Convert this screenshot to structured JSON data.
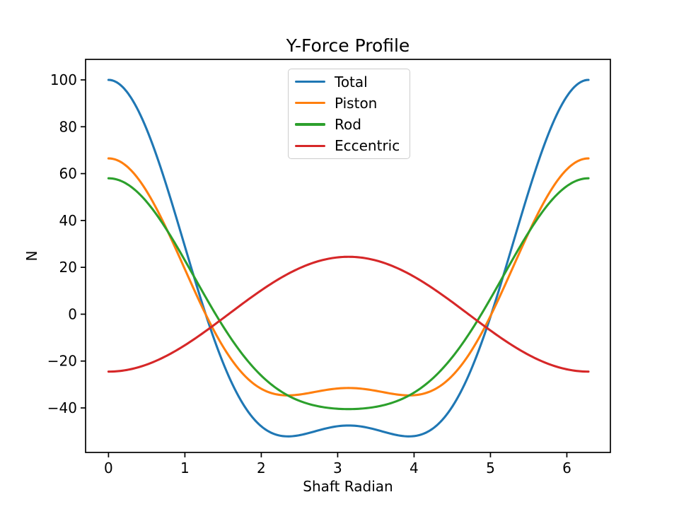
{
  "figure": {
    "background": "#ffffff"
  },
  "chart_data": {
    "type": "line",
    "title": "Y-Force Profile",
    "xlabel": "Shaft Radian",
    "ylabel": "N",
    "xlim": [
      -0.3,
      6.57
    ],
    "ylim": [
      -59.0,
      108.75
    ],
    "x_ticks": [
      0,
      1,
      2,
      3,
      4,
      5,
      6
    ],
    "y_ticks": [
      -40,
      -20,
      0,
      20,
      40,
      60,
      80,
      100
    ],
    "grid": false,
    "axis_color": "#000000",
    "text_color": "#000000",
    "legend": {
      "position": "upper center inside",
      "entries": [
        "Total",
        "Piston",
        "Rod",
        "Eccentric"
      ]
    },
    "x_range": [
      0,
      6.2832
    ],
    "series": [
      {
        "name": "Total",
        "color": "#1f77b4",
        "harmonics": {
          "cos1": 73.75,
          "cos2": 26.25
        }
      },
      {
        "name": "Piston",
        "color": "#ff7f0e",
        "harmonics": {
          "cos1": 49.0,
          "cos2": 17.5
        }
      },
      {
        "name": "Rod",
        "color": "#2ca02c",
        "harmonics": {
          "cos1": 49.25,
          "cos2": 8.75
        }
      },
      {
        "name": "Eccentric",
        "color": "#d62728",
        "harmonics": {
          "cos1": -24.5,
          "cos2": 0.0
        }
      }
    ],
    "samples": {
      "x": [
        0,
        0.5,
        1.0,
        1.5,
        2.0,
        2.5,
        3.0,
        3.5,
        4.0,
        4.5,
        5.0,
        5.5,
        6.0,
        6.2832
      ],
      "Total": [
        100.0,
        78.9,
        28.9,
        -20.8,
        -47.9,
        -51.6,
        -47.8,
        -49.3,
        -52.0,
        -39.5,
        -1.1,
        52.4,
        93.0,
        100.0
      ],
      "Piston": [
        66.5,
        52.5,
        19.2,
        -13.9,
        -31.8,
        -34.3,
        -31.7,
        -32.7,
        -34.6,
        -26.3,
        -0.8,
        34.8,
        61.8,
        66.5
      ],
      "Rod": [
        58.0,
        48.0,
        23.0,
        -5.2,
        -26.2,
        -37.0,
        -40.4,
        -39.5,
        -33.5,
        -18.4,
        6.6,
        34.9,
        54.7,
        58.0
      ],
      "Eccentric": [
        -24.5,
        -21.5,
        -13.2,
        -1.7,
        10.2,
        19.6,
        24.3,
        22.9,
        16.0,
        5.2,
        -7.0,
        -17.4,
        -23.5,
        -24.5
      ]
    }
  }
}
